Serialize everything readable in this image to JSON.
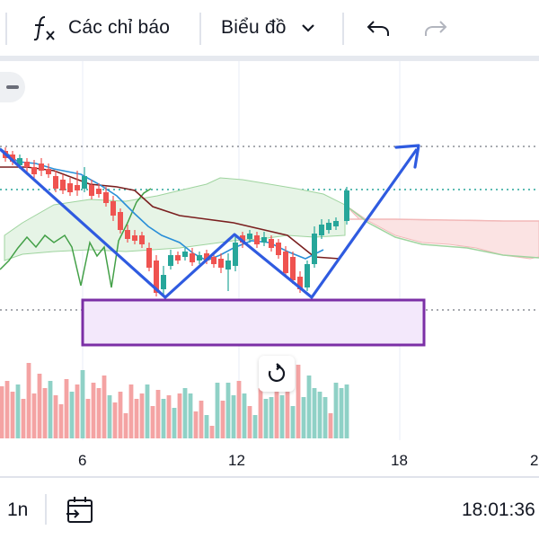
{
  "toolbar": {
    "indicators_icon": "function-icon",
    "indicators_label": "Các chỉ báo",
    "chart_type_label": "Biểu đồ",
    "chart_type_icon": "chevron-down-icon",
    "undo_icon": "undo-icon",
    "redo_icon": "redo-icon"
  },
  "chart": {
    "x_axis_ticks": [
      "6",
      "12",
      "18",
      "2"
    ],
    "reset_icon": "reset-view-icon",
    "colors": {
      "up": "#26a69a",
      "down": "#ef5350",
      "volume_up": "#8fd1c6",
      "volume_down": "#f4a3a3",
      "drawing_line": "#2f5be0",
      "rectangle_border": "#7b2fa6",
      "rectangle_fill": "#f3e8fb",
      "kijun": "#7a1f1f",
      "tenkan": "#2a8fd8",
      "chikou": "#43a047",
      "cloud_bull": "#e6f4e6",
      "cloud_bear": "#fbe3e3"
    }
  },
  "bottom_bar": {
    "interval": "1n",
    "goto_icon": "calendar-goto-icon",
    "time": "18:01:36"
  }
}
